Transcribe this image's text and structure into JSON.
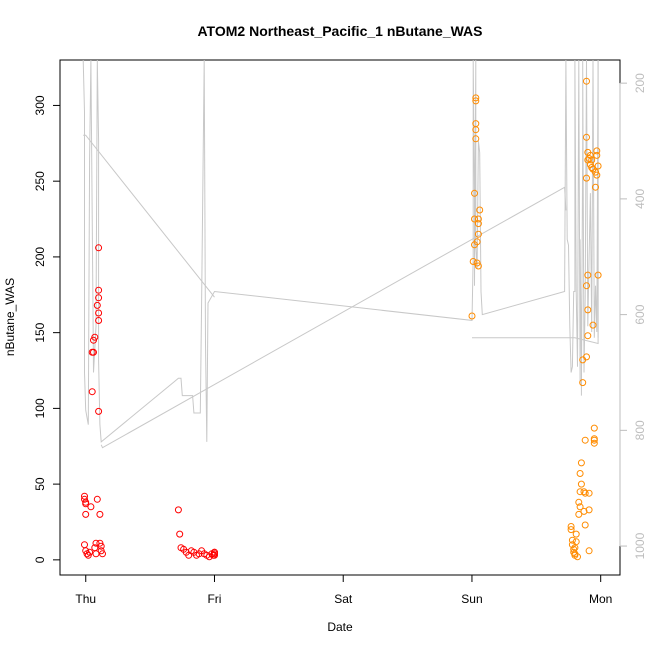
{
  "chart_data": {
    "type": "scatter",
    "title": "ATOM2 Northeast_Pacific_1 nButane_WAS",
    "xlabel": "Date",
    "ylabel": "nButane_WAS",
    "x_ticks": [
      "Thu",
      "Fri",
      "Sat",
      "Sun",
      "Mon"
    ],
    "x_range_days": [
      -0.2,
      4.15
    ],
    "ylim": [
      -10,
      330
    ],
    "y_ticks": [
      0,
      50,
      100,
      150,
      200,
      250,
      300
    ],
    "right_axis": {
      "reversed": true,
      "ylim": [
        1050,
        160
      ],
      "ticks": [
        200,
        400,
        600,
        800,
        1000
      ],
      "color": "#bdbdbd"
    },
    "grid": false,
    "series": [
      {
        "color": "#ff0000",
        "marker": "open-circle",
        "points": [
          [
            -0.01,
            42
          ],
          [
            -0.01,
            40
          ],
          [
            0.0,
            38
          ],
          [
            0.0,
            37
          ],
          [
            0.0,
            30
          ],
          [
            -0.01,
            10
          ],
          [
            0.0,
            6
          ],
          [
            0.01,
            4
          ],
          [
            0.02,
            3
          ],
          [
            0.03,
            5
          ],
          [
            0.04,
            35
          ],
          [
            0.05,
            111
          ],
          [
            0.05,
            137
          ],
          [
            0.06,
            137
          ],
          [
            0.06,
            145
          ],
          [
            0.07,
            147
          ],
          [
            0.07,
            8
          ],
          [
            0.08,
            4
          ],
          [
            0.08,
            11
          ],
          [
            0.09,
            40
          ],
          [
            0.09,
            168
          ],
          [
            0.1,
            173
          ],
          [
            0.1,
            178
          ],
          [
            0.1,
            163
          ],
          [
            0.1,
            158
          ],
          [
            0.1,
            206
          ],
          [
            0.1,
            98
          ],
          [
            0.11,
            30
          ],
          [
            0.11,
            11
          ],
          [
            0.12,
            9
          ],
          [
            0.12,
            6
          ],
          [
            0.13,
            4
          ],
          [
            0.72,
            33
          ],
          [
            0.73,
            17
          ],
          [
            0.74,
            8
          ],
          [
            0.76,
            7
          ],
          [
            0.78,
            5
          ],
          [
            0.8,
            3
          ],
          [
            0.82,
            6
          ],
          [
            0.84,
            5
          ],
          [
            0.86,
            3
          ],
          [
            0.88,
            4
          ],
          [
            0.9,
            6
          ],
          [
            0.92,
            4
          ],
          [
            0.94,
            3
          ],
          [
            0.96,
            2
          ],
          [
            0.98,
            4
          ],
          [
            0.99,
            3
          ],
          [
            1.0,
            5
          ],
          [
            1.0,
            4
          ],
          [
            1.0,
            5
          ],
          [
            1.0,
            3
          ]
        ]
      },
      {
        "color": "#ff8c00",
        "marker": "open-circle",
        "points": [
          [
            3.0,
            161
          ],
          [
            3.01,
            197
          ],
          [
            3.02,
            208
          ],
          [
            3.02,
            225
          ],
          [
            3.02,
            242
          ],
          [
            3.03,
            305
          ],
          [
            3.03,
            303
          ],
          [
            3.03,
            288
          ],
          [
            3.03,
            284
          ],
          [
            3.03,
            278
          ],
          [
            3.04,
            210
          ],
          [
            3.04,
            196
          ],
          [
            3.05,
            194
          ],
          [
            3.05,
            215
          ],
          [
            3.05,
            222
          ],
          [
            3.05,
            225
          ],
          [
            3.06,
            231
          ],
          [
            3.77,
            22
          ],
          [
            3.77,
            20
          ],
          [
            3.78,
            13
          ],
          [
            3.78,
            10
          ],
          [
            3.79,
            7
          ],
          [
            3.79,
            5
          ],
          [
            3.8,
            4
          ],
          [
            3.8,
            3
          ],
          [
            3.8,
            8
          ],
          [
            3.81,
            12
          ],
          [
            3.81,
            17
          ],
          [
            3.82,
            2
          ],
          [
            3.83,
            30
          ],
          [
            3.83,
            38
          ],
          [
            3.84,
            35
          ],
          [
            3.84,
            45
          ],
          [
            3.84,
            57
          ],
          [
            3.85,
            64
          ],
          [
            3.85,
            50
          ],
          [
            3.86,
            117
          ],
          [
            3.86,
            132
          ],
          [
            3.87,
            45
          ],
          [
            3.87,
            32
          ],
          [
            3.88,
            23
          ],
          [
            3.88,
            44
          ],
          [
            3.88,
            79
          ],
          [
            3.89,
            134
          ],
          [
            3.89,
            181
          ],
          [
            3.89,
            252
          ],
          [
            3.89,
            279
          ],
          [
            3.89,
            316
          ],
          [
            3.9,
            188
          ],
          [
            3.9,
            165
          ],
          [
            3.9,
            148
          ],
          [
            3.9,
            264
          ],
          [
            3.9,
            269
          ],
          [
            3.91,
            265
          ],
          [
            3.91,
            6
          ],
          [
            3.91,
            33
          ],
          [
            3.91,
            44
          ],
          [
            3.92,
            267
          ],
          [
            3.92,
            261
          ],
          [
            3.93,
            264
          ],
          [
            3.93,
            259
          ],
          [
            3.94,
            258
          ],
          [
            3.94,
            258
          ],
          [
            3.94,
            155
          ],
          [
            3.95,
            80
          ],
          [
            3.95,
            77
          ],
          [
            3.95,
            87
          ],
          [
            3.95,
            79
          ],
          [
            3.96,
            246
          ],
          [
            3.96,
            256
          ],
          [
            3.97,
            254
          ],
          [
            3.97,
            270
          ],
          [
            3.97,
            267
          ],
          [
            3.98,
            188
          ],
          [
            3.98,
            260
          ]
        ]
      },
      {
        "color": "#c8c8c8",
        "marker": "line",
        "axis": "right",
        "points": [
          [
            -0.02,
            160
          ],
          [
            -0.01,
            250
          ],
          [
            -0.01,
            700
          ],
          [
            0.0,
            765
          ],
          [
            0.02,
            790
          ],
          [
            0.03,
            330
          ],
          [
            0.04,
            160
          ],
          [
            0.06,
            700
          ],
          [
            0.08,
            620
          ],
          [
            0.09,
            160
          ],
          [
            0.1,
            300
          ],
          [
            0.1,
            680
          ],
          [
            0.11,
            790
          ],
          [
            0.12,
            820
          ],
          [
            0.72,
            710
          ],
          [
            0.74,
            710
          ],
          [
            0.75,
            740
          ],
          [
            0.83,
            740
          ],
          [
            0.84,
            770
          ],
          [
            0.89,
            770
          ],
          [
            0.9,
            580
          ],
          [
            0.92,
            160
          ],
          [
            0.93,
            650
          ],
          [
            0.94,
            820
          ],
          [
            0.95,
            580
          ],
          [
            1.0,
            560
          ],
          [
            3.0,
            610
          ],
          [
            3.01,
            500
          ],
          [
            3.01,
            160
          ],
          [
            3.02,
            400
          ],
          [
            3.02,
            550
          ],
          [
            3.03,
            160
          ],
          [
            3.03,
            480
          ],
          [
            3.04,
            520
          ],
          [
            3.05,
            300
          ],
          [
            3.06,
            320
          ],
          [
            3.07,
            560
          ],
          [
            3.08,
            600
          ],
          [
            3.72,
            560
          ],
          [
            3.73,
            160
          ],
          [
            3.74,
            470
          ],
          [
            3.75,
            480
          ],
          [
            3.76,
            620
          ],
          [
            3.77,
            700
          ],
          [
            3.78,
            690
          ],
          [
            3.79,
            560
          ],
          [
            3.8,
            560
          ],
          [
            3.8,
            160
          ],
          [
            3.81,
            560
          ],
          [
            3.82,
            690
          ],
          [
            3.83,
            160
          ],
          [
            3.84,
            720
          ],
          [
            3.84,
            470
          ],
          [
            3.85,
            690
          ],
          [
            3.85,
            740
          ],
          [
            3.86,
            300
          ],
          [
            3.86,
            160
          ],
          [
            3.87,
            700
          ],
          [
            3.88,
            570
          ],
          [
            3.89,
            160
          ],
          [
            3.9,
            620
          ],
          [
            3.91,
            500
          ],
          [
            3.92,
            390
          ],
          [
            3.93,
            630
          ],
          [
            3.94,
            160
          ],
          [
            3.95,
            640
          ],
          [
            3.96,
            550
          ],
          [
            3.97,
            630
          ],
          [
            3.98,
            160
          ],
          [
            3.98,
            640
          ]
        ]
      },
      {
        "color": "#c8c8c8",
        "marker": "line",
        "axis": "right",
        "points": [
          [
            0.12,
            825
          ],
          [
            0.13,
            830
          ],
          [
            2.6,
            520
          ],
          [
            3.72,
            380
          ],
          [
            3.73,
            420
          ]
        ]
      },
      {
        "color": "#c8c8c8",
        "marker": "line",
        "axis": "right",
        "points": [
          [
            -0.02,
            290
          ],
          [
            0.0,
            290
          ],
          [
            1.0,
            570
          ]
        ]
      },
      {
        "color": "#c8c8c8",
        "marker": "line",
        "axis": "right",
        "points": [
          [
            3.0,
            640
          ],
          [
            3.8,
            640
          ],
          [
            3.98,
            650
          ],
          [
            3.98,
            160
          ]
        ]
      }
    ]
  }
}
